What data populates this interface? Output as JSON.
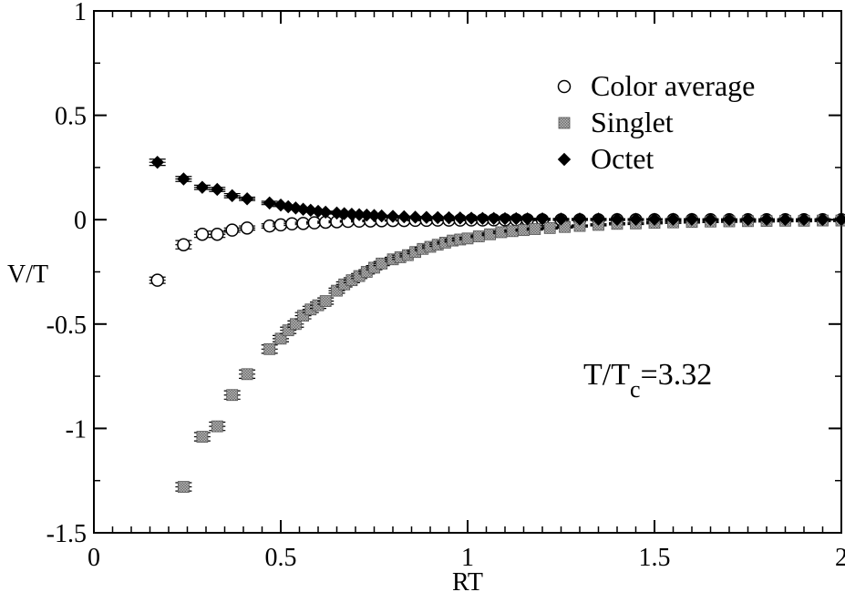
{
  "chart_data": {
    "type": "scatter",
    "xlabel": "RT",
    "ylabel": "V/T",
    "xlim": [
      0,
      2
    ],
    "ylim": [
      -1.5,
      1
    ],
    "x_ticks": [
      0,
      0.5,
      1,
      1.5,
      2
    ],
    "x_tick_labels": [
      "0",
      "0.5",
      "1",
      "1.5",
      "2"
    ],
    "y_ticks": [
      -1.5,
      -1,
      -0.5,
      0,
      0.5,
      1
    ],
    "y_tick_labels": [
      "-1.5",
      "-1",
      "-0.5",
      "0",
      "0.5",
      "1"
    ],
    "grid": false,
    "legend_position": "top-right",
    "annotation": {
      "prefix": "T/T",
      "subscript": "c",
      "suffix": "=3.32"
    },
    "series": [
      {
        "name": "Color average",
        "marker": "open-circle",
        "color": "#000000",
        "x": [
          0.17,
          0.24,
          0.29,
          0.33,
          0.37,
          0.41,
          0.47,
          0.5,
          0.53,
          0.56,
          0.59,
          0.62,
          0.65,
          0.68,
          0.71,
          0.74,
          0.77,
          0.8,
          0.83,
          0.86,
          0.89,
          0.92,
          0.95,
          0.98,
          1.01,
          1.04,
          1.07,
          1.1,
          1.13,
          1.16,
          1.2,
          1.25,
          1.3,
          1.35,
          1.4,
          1.45,
          1.5,
          1.55,
          1.6,
          1.65,
          1.7,
          1.75,
          1.8,
          1.85,
          1.9,
          1.95,
          2.0
        ],
        "y": [
          -0.29,
          -0.12,
          -0.07,
          -0.07,
          -0.05,
          -0.04,
          -0.03,
          -0.025,
          -0.02,
          -0.018,
          -0.015,
          -0.012,
          -0.01,
          -0.008,
          -0.007,
          -0.006,
          -0.005,
          -0.004,
          -0.004,
          -0.003,
          -0.003,
          -0.002,
          -0.002,
          -0.002,
          -0.0015,
          -0.0015,
          -0.001,
          -0.001,
          -0.001,
          -0.001,
          -0.0008,
          -0.0007,
          -0.0006,
          -0.0005,
          -0.0004,
          -0.0004,
          -0.0003,
          -0.0003,
          -0.0002,
          -0.0002,
          -0.0002,
          -0.0002,
          -0.0001,
          -0.0001,
          -0.0001,
          -0.0001,
          -0.0001
        ],
        "err": [
          0.015,
          0.02,
          0.015,
          0.015,
          0.01,
          0.01,
          0.01,
          0.008,
          0.008,
          0.006,
          0.006,
          0.005,
          0.005,
          0.004,
          0.004,
          0.004,
          0.003,
          0.003,
          0.003,
          0.003,
          0.003,
          0.003,
          0.003,
          0.003,
          0.003,
          0.003,
          0.003,
          0.003,
          0.003,
          0.003,
          0.003,
          0.003,
          0.003,
          0.003,
          0.003,
          0.003,
          0.003,
          0.003,
          0.003,
          0.003,
          0.003,
          0.003,
          0.003,
          0.003,
          0.003,
          0.003,
          0.003
        ]
      },
      {
        "name": "Singlet",
        "marker": "gray-square",
        "color": "#999999",
        "x": [
          0.24,
          0.29,
          0.33,
          0.37,
          0.41,
          0.47,
          0.5,
          0.52,
          0.54,
          0.56,
          0.58,
          0.6,
          0.62,
          0.65,
          0.67,
          0.69,
          0.71,
          0.73,
          0.75,
          0.77,
          0.8,
          0.82,
          0.84,
          0.86,
          0.88,
          0.9,
          0.92,
          0.94,
          0.96,
          0.98,
          1.0,
          1.03,
          1.06,
          1.09,
          1.12,
          1.15,
          1.18,
          1.22,
          1.26,
          1.3,
          1.35,
          1.4,
          1.45,
          1.5,
          1.55,
          1.6,
          1.65,
          1.7,
          1.75,
          1.8,
          1.85,
          1.9,
          1.95,
          2.0
        ],
        "y": [
          -1.28,
          -1.04,
          -0.99,
          -0.84,
          -0.74,
          -0.62,
          -0.57,
          -0.53,
          -0.5,
          -0.46,
          -0.43,
          -0.41,
          -0.39,
          -0.34,
          -0.31,
          -0.29,
          -0.27,
          -0.25,
          -0.23,
          -0.21,
          -0.19,
          -0.18,
          -0.17,
          -0.155,
          -0.14,
          -0.13,
          -0.12,
          -0.11,
          -0.1,
          -0.095,
          -0.09,
          -0.08,
          -0.07,
          -0.06,
          -0.055,
          -0.05,
          -0.045,
          -0.04,
          -0.035,
          -0.03,
          -0.025,
          -0.02,
          -0.018,
          -0.015,
          -0.013,
          -0.011,
          -0.009,
          -0.008,
          -0.007,
          -0.006,
          -0.005,
          -0.005,
          -0.004,
          -0.004
        ],
        "err": [
          0.02,
          0.02,
          0.02,
          0.02,
          0.02,
          0.02,
          0.015,
          0.015,
          0.015,
          0.015,
          0.015,
          0.015,
          0.015,
          0.012,
          0.012,
          0.012,
          0.012,
          0.01,
          0.01,
          0.01,
          0.01,
          0.01,
          0.008,
          0.008,
          0.008,
          0.008,
          0.008,
          0.007,
          0.007,
          0.007,
          0.006,
          0.006,
          0.006,
          0.006,
          0.005,
          0.005,
          0.005,
          0.005,
          0.005,
          0.005,
          0.005,
          0.005,
          0.005,
          0.005,
          0.005,
          0.005,
          0.005,
          0.005,
          0.005,
          0.005,
          0.005,
          0.005,
          0.005,
          0.005
        ]
      },
      {
        "name": "Octet",
        "marker": "filled-diamond",
        "color": "#000000",
        "x": [
          0.17,
          0.24,
          0.29,
          0.33,
          0.37,
          0.41,
          0.47,
          0.5,
          0.52,
          0.54,
          0.56,
          0.58,
          0.6,
          0.62,
          0.65,
          0.67,
          0.69,
          0.71,
          0.73,
          0.75,
          0.77,
          0.8,
          0.83,
          0.86,
          0.89,
          0.92,
          0.95,
          0.98,
          1.01,
          1.04,
          1.07,
          1.1,
          1.13,
          1.16,
          1.2,
          1.25,
          1.3,
          1.35,
          1.4,
          1.45,
          1.5,
          1.55,
          1.6,
          1.65,
          1.7,
          1.75,
          1.8,
          1.85,
          1.9,
          1.95,
          2.0
        ],
        "y": [
          0.275,
          0.195,
          0.155,
          0.145,
          0.115,
          0.1,
          0.08,
          0.07,
          0.062,
          0.056,
          0.05,
          0.045,
          0.04,
          0.036,
          0.032,
          0.029,
          0.026,
          0.024,
          0.022,
          0.02,
          0.018,
          0.016,
          0.014,
          0.012,
          0.011,
          0.01,
          0.009,
          0.008,
          0.007,
          0.006,
          0.006,
          0.005,
          0.005,
          0.004,
          0.004,
          0.003,
          0.003,
          0.003,
          0.002,
          0.002,
          0.002,
          0.002,
          0.002,
          0.001,
          0.001,
          0.001,
          0.001,
          0.001,
          0.001,
          0.001,
          0.001
        ],
        "err": [
          0.015,
          0.012,
          0.01,
          0.01,
          0.01,
          0.008,
          0.008,
          0.007,
          0.007,
          0.006,
          0.006,
          0.005,
          0.005,
          0.005,
          0.005,
          0.004,
          0.004,
          0.004,
          0.004,
          0.004,
          0.003,
          0.003,
          0.003,
          0.003,
          0.003,
          0.003,
          0.003,
          0.003,
          0.003,
          0.003,
          0.003,
          0.003,
          0.003,
          0.003,
          0.003,
          0.003,
          0.003,
          0.003,
          0.003,
          0.003,
          0.003,
          0.003,
          0.003,
          0.003,
          0.003,
          0.003,
          0.003,
          0.003,
          0.003,
          0.003,
          0.003
        ]
      }
    ]
  }
}
